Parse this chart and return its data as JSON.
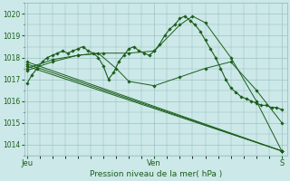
{
  "xlabel": "Pression niveau de la mer( hPa )",
  "background_color": "#cce8e8",
  "plot_bg_color": "#cce8e8",
  "grid_color": "#90bbbb",
  "line_color": "#1a5e1a",
  "ylim": [
    1013.5,
    1020.5
  ],
  "yticks": [
    1014,
    1015,
    1016,
    1017,
    1018,
    1019,
    1020
  ],
  "xtick_labels": [
    "Jeu",
    "Ven",
    "S"
  ],
  "xtick_positions": [
    0.0,
    0.5,
    1.0
  ],
  "series": [
    {
      "x": [
        0.0,
        0.02,
        0.04,
        0.06,
        0.08,
        0.1,
        0.12,
        0.14,
        0.16,
        0.18,
        0.2,
        0.22,
        0.24,
        0.26,
        0.28,
        0.3,
        0.32,
        0.34,
        0.36,
        0.38,
        0.4,
        0.42,
        0.44,
        0.46,
        0.48,
        0.5,
        0.52,
        0.54,
        0.56,
        0.58,
        0.6,
        0.62,
        0.64,
        0.66,
        0.68,
        0.7,
        0.72,
        0.74,
        0.76,
        0.78,
        0.8,
        0.82,
        0.84,
        0.86,
        0.88,
        0.9,
        0.92,
        0.94,
        0.96,
        0.98,
        1.0
      ],
      "y": [
        1016.8,
        1017.2,
        1017.5,
        1017.8,
        1018.0,
        1018.1,
        1018.2,
        1018.3,
        1018.2,
        1018.3,
        1018.4,
        1018.5,
        1018.3,
        1018.2,
        1018.0,
        1017.6,
        1017.0,
        1017.3,
        1017.8,
        1018.1,
        1018.4,
        1018.5,
        1018.3,
        1018.2,
        1018.1,
        1018.3,
        1018.6,
        1019.0,
        1019.3,
        1019.5,
        1019.8,
        1019.9,
        1019.7,
        1019.5,
        1019.2,
        1018.8,
        1018.4,
        1018.0,
        1017.5,
        1017.0,
        1016.6,
        1016.4,
        1016.2,
        1016.1,
        1016.0,
        1015.9,
        1015.8,
        1015.8,
        1015.7,
        1015.7,
        1015.6
      ]
    },
    {
      "x": [
        0.0,
        1.0
      ],
      "y": [
        1017.6,
        1013.7
      ]
    },
    {
      "x": [
        0.0,
        1.0
      ],
      "y": [
        1017.7,
        1013.7
      ]
    },
    {
      "x": [
        0.0,
        1.0
      ],
      "y": [
        1017.8,
        1013.7
      ]
    },
    {
      "x": [
        0.0,
        0.1,
        0.2,
        0.3,
        0.4,
        0.5,
        0.6,
        0.65,
        0.7,
        0.8,
        0.9,
        1.0
      ],
      "y": [
        1017.5,
        1017.9,
        1018.1,
        1018.2,
        1018.2,
        1018.3,
        1019.5,
        1019.9,
        1019.6,
        1018.0,
        1016.0,
        1013.7
      ]
    },
    {
      "x": [
        0.0,
        0.1,
        0.2,
        0.28,
        0.35,
        0.4,
        0.5,
        0.6,
        0.7,
        0.8,
        0.9,
        1.0
      ],
      "y": [
        1017.4,
        1017.8,
        1018.1,
        1018.2,
        1017.5,
        1016.9,
        1016.7,
        1017.1,
        1017.5,
        1017.8,
        1016.5,
        1015.0
      ]
    }
  ]
}
